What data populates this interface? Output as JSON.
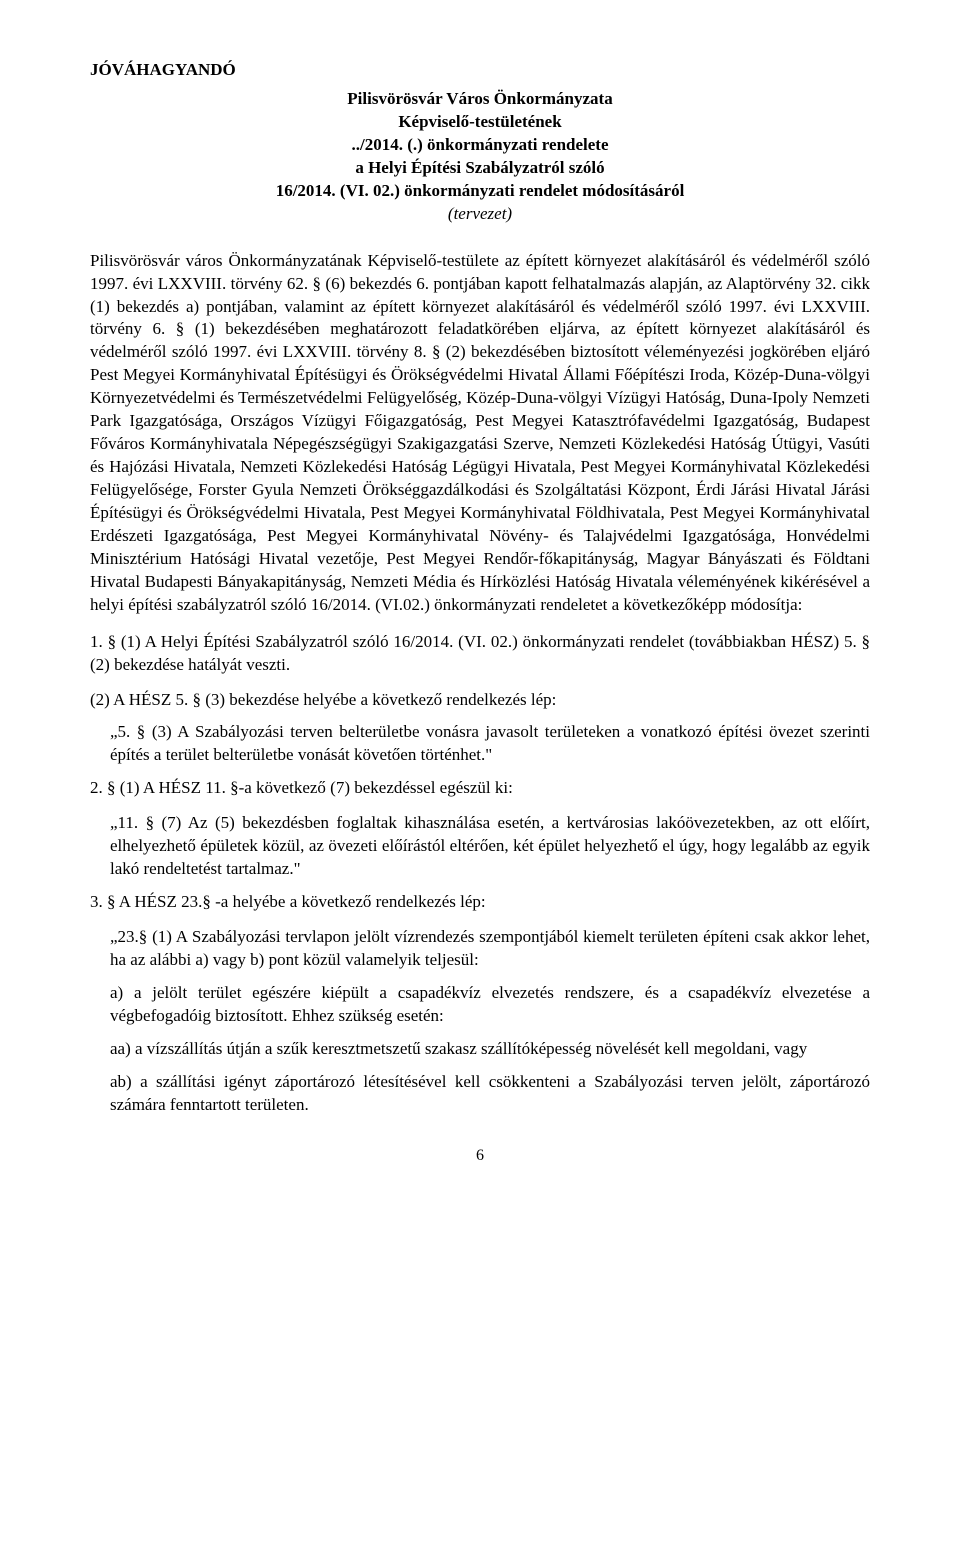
{
  "approval": "JÓVÁHAGYANDÓ",
  "header": {
    "l1": "Pilisvörösvár Város Önkormányzata",
    "l2": "Képviselő-testületének",
    "l3": "../2014. (.) önkormányzati rendelete",
    "l4": "a Helyi Építési Szabályzatról szóló",
    "l5": "16/2014. (VI. 02.) önkormányzati rendelet módosításáról",
    "l6": "(tervezet)"
  },
  "main_para": "Pilisvörösvár város Önkormányzatának Képviselő-testülete az épített környezet alakításáról és védelméről szóló 1997. évi LXXVIII. törvény 62. § (6) bekezdés 6. pontjában kapott felhatalmazás alapján, az Alaptörvény 32. cikk (1) bekezdés a) pontjában, valamint az épített környezet alakításáról és védelméről szóló 1997. évi LXXVIII. törvény 6. § (1) bekezdésében meghatározott feladatkörében eljárva, az épített környezet alakításáról és védelméről szóló 1997. évi LXXVIII. törvény 8. § (2) bekezdésében biztosított véleményezési jogkörében eljáró Pest Megyei Kormányhivatal Építésügyi és Örökségvédelmi Hivatal Állami Főépítészi Iroda, Közép-Duna-völgyi Környezetvédelmi és Természetvédelmi Felügyelőség, Közép-Duna-völgyi Vízügyi Hatóság, Duna-Ipoly Nemzeti Park Igazgatósága, Országos Vízügyi Főigazgatóság, Pest Megyei Katasztrófavédelmi Igazgatóság, Budapest Főváros Kormányhivatala Népegészségügyi Szakigazgatási Szerve, Nemzeti Közlekedési Hatóság Útügyi, Vasúti és Hajózási Hivatala, Nemzeti Közlekedési Hatóság Légügyi Hivatala, Pest Megyei Kormányhivatal Közlekedési Felügyelősége, Forster Gyula Nemzeti Örökséggazdálkodási és Szolgáltatási Központ, Érdi Járási Hivatal Járási Építésügyi és Örökségvédelmi Hivatala, Pest Megyei Kormányhivatal Földhivatala, Pest Megyei Kormányhivatal Erdészeti Igazgatósága, Pest Megyei Kormányhivatal Növény- és Talajvédelmi Igazgatósága, Honvédelmi Minisztérium Hatósági Hivatal vezetője, Pest Megyei Rendőr-főkapitányság, Magyar Bányászati és Földtani Hivatal Budapesti Bányakapitányság, Nemzeti Média és Hírközlési Hatóság Hivatala véleményének kikérésével a helyi építési szabályzatról szóló 16/2014. (VI.02.) önkormányzati rendeletet a következőképp módosítja:",
  "items": {
    "p1_lead": "1. §",
    "p1_text": " (1) A Helyi Építési Szabályzatról szóló 16/2014. (VI. 02.) önkormányzati rendelet (továbbiakban HÉSZ) 5. § (2) bekezdése hatályát veszti.",
    "p1_sub1": "(2) A HÉSZ 5. § (3) bekezdése helyébe a következő rendelkezés lép:",
    "p1_sub1_q": "„5. § (3) A Szabályozási terven belterületbe vonásra javasolt területeken a vonatkozó építési övezet szerinti építés a terület belterületbe vonását követően történhet.\"",
    "p2_lead": "2. §",
    "p2_text": " (1) A HÉSZ 11. §-a következő (7) bekezdéssel egészül ki:",
    "p2_q": "„11. § (7) Az (5) bekezdésben foglaltak kihasználása esetén, a kertvárosias lakóövezetekben, az ott előírt, elhelyezhető épületek közül, az övezeti előírástól eltérően, két épület helyezhető el úgy, hogy legalább az egyik lakó rendeltetést tartalmaz.\"",
    "p3_lead": "3. §",
    "p3_text": " A HÉSZ 23.§ -a helyébe a következő rendelkezés lép:",
    "p3_q1": "„23.§ (1) A Szabályozási tervlapon jelölt vízrendezés szempontjából kiemelt területen építeni csak akkor lehet, ha az alábbi a) vagy b) pont közül valamelyik teljesül:",
    "p3_a": "a) a jelölt terület egészére kiépült a csapadékvíz elvezetés rendszere, és a csapadékvíz elvezetése a végbefogadóig biztosított. Ehhez szükség esetén:",
    "p3_aa": "aa) a vízszállítás útján a szűk keresztmetszetű szakasz szállítóképesség növelését kell megoldani, vagy",
    "p3_ab": "ab) a szállítási igényt záportározó létesítésével kell csökkenteni a Szabályozási terven jelölt, záportározó számára fenntartott területen."
  },
  "page_number": "6"
}
